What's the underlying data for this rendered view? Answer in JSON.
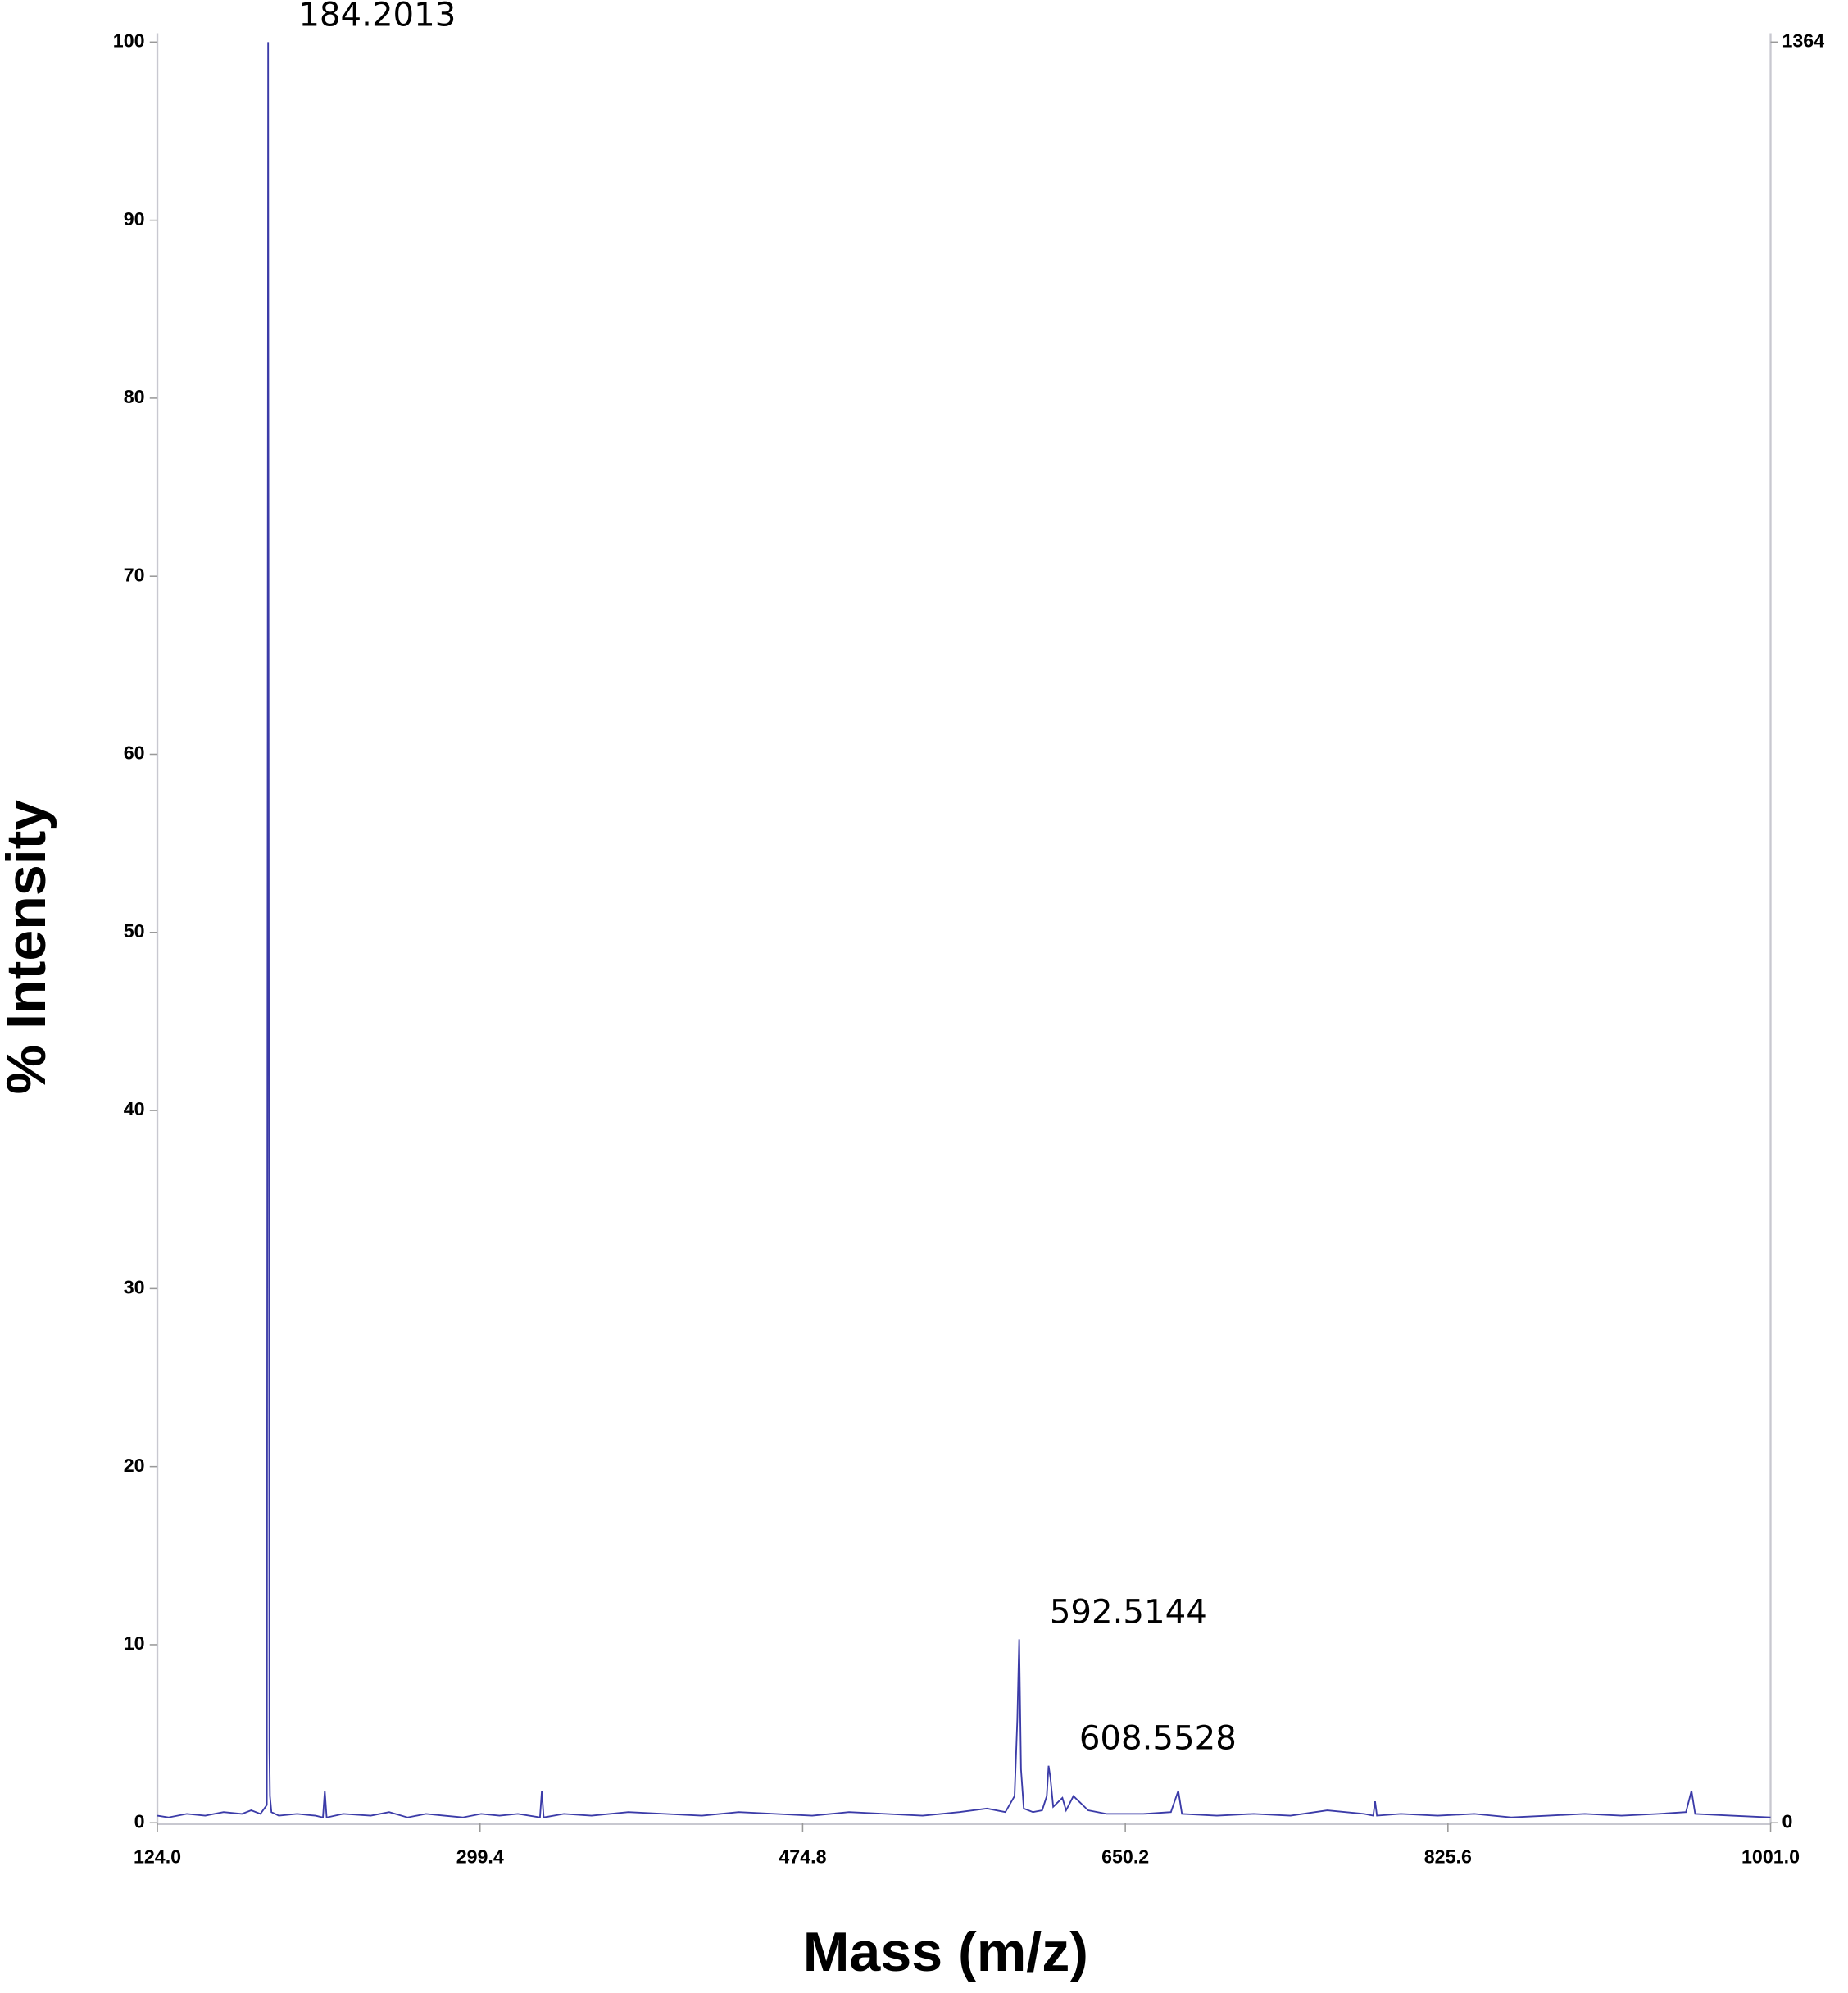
{
  "chart_data": {
    "type": "line",
    "xlabel": "Mass (m/z)",
    "ylabel": "% Intensity",
    "color": "#3b3ba8",
    "x": [
      124,
      130,
      140,
      150,
      160,
      170,
      175,
      180,
      183.5,
      184.2,
      184.9,
      185.2,
      186,
      190,
      200,
      210,
      214,
      215,
      216,
      225,
      240,
      250,
      260,
      270,
      280,
      290,
      300,
      310,
      320,
      332,
      333,
      334,
      345,
      360,
      380,
      400,
      420,
      440,
      460,
      480,
      500,
      520,
      540,
      560,
      575,
      585,
      590,
      591.5,
      592.5,
      593.5,
      595,
      600,
      605,
      607.5,
      608.5,
      609.5,
      611,
      616,
      618,
      622,
      630,
      640,
      660,
      675,
      679,
      681,
      700,
      720,
      740,
      760,
      780,
      785,
      786,
      787,
      800,
      820,
      840,
      860,
      880,
      900,
      920,
      940,
      955,
      958,
      960,
      980,
      1001
    ],
    "values": [
      0.4,
      0.3,
      0.5,
      0.4,
      0.6,
      0.5,
      0.7,
      0.5,
      1,
      100,
      4,
      1.5,
      0.6,
      0.4,
      0.5,
      0.4,
      0.3,
      1.8,
      0.3,
      0.5,
      0.4,
      0.6,
      0.3,
      0.5,
      0.4,
      0.3,
      0.5,
      0.4,
      0.5,
      0.3,
      1.8,
      0.3,
      0.5,
      0.4,
      0.6,
      0.5,
      0.4,
      0.6,
      0.5,
      0.4,
      0.6,
      0.5,
      0.4,
      0.6,
      0.8,
      0.6,
      1.5,
      5.8,
      10.3,
      3,
      0.8,
      0.6,
      0.7,
      1.5,
      3.2,
      2.5,
      0.9,
      1.4,
      0.7,
      1.5,
      0.7,
      0.5,
      0.5,
      0.6,
      1.8,
      0.5,
      0.4,
      0.5,
      0.4,
      0.7,
      0.5,
      0.4,
      1.2,
      0.4,
      0.5,
      0.4,
      0.5,
      0.3,
      0.4,
      0.5,
      0.4,
      0.5,
      0.6,
      1.8,
      0.5,
      0.4,
      0.3
    ],
    "xlim": [
      124,
      1001
    ],
    "xticks": [
      {
        "value": 124,
        "label": "124.0"
      },
      299.4,
      474.8,
      650.2,
      825.6,
      {
        "value": 1001,
        "label": "1001.0"
      }
    ],
    "ylim": [
      0,
      100
    ],
    "yticks": [
      0,
      10,
      20,
      30,
      40,
      50,
      60,
      70,
      80,
      90,
      100
    ],
    "y2lim": [
      0,
      1364
    ],
    "y2ticks": [
      0,
      1364
    ],
    "annotations": [
      {
        "label": "184.2013",
        "x": 184.2013,
        "y": 100
      },
      {
        "label": "592.5144",
        "x": 592.5144,
        "y": 10.3
      },
      {
        "label": "608.5528",
        "x": 608.5528,
        "y": 3.2
      }
    ]
  }
}
